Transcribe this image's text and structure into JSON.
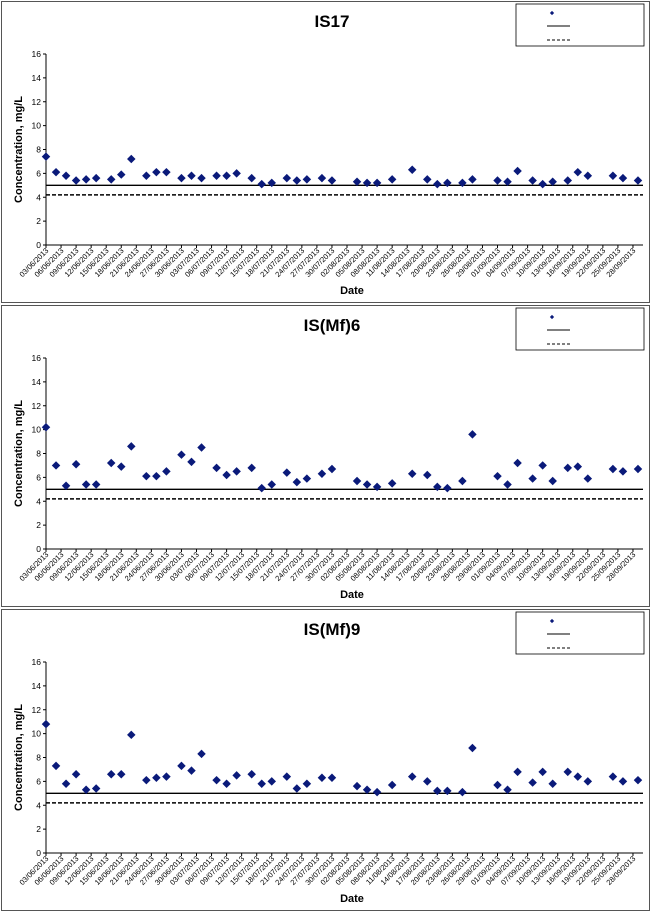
{
  "charts": [
    {
      "id": "IS17",
      "title": "IS17"
    },
    {
      "id": "ISMf6",
      "title": "IS(Mf)6"
    },
    {
      "id": "ISMf9",
      "title": "IS(Mf)9"
    }
  ],
  "chart_data": [
    {
      "type": "scatter",
      "title": "IS17",
      "xlabel": "Date",
      "ylabel": "Concentration, mg/L",
      "ylim": [
        0,
        16
      ],
      "yticks": [
        0,
        2,
        4,
        6,
        8,
        10,
        12,
        14,
        16
      ],
      "xlim": [
        "03/06/2013",
        "30/09/2013"
      ],
      "xticks": [
        "03/06/2013",
        "06/06/2013",
        "09/06/2013",
        "12/06/2013",
        "15/06/2013",
        "18/06/2013",
        "21/06/2013",
        "24/06/2013",
        "27/06/2013",
        "30/06/2013",
        "03/07/2013",
        "06/07/2013",
        "09/07/2013",
        "12/07/2013",
        "15/07/2013",
        "18/07/2013",
        "21/07/2013",
        "24/07/2013",
        "27/07/2013",
        "30/07/2013",
        "02/08/2013",
        "05/08/2013",
        "08/08/2013",
        "11/08/2013",
        "14/08/2013",
        "17/08/2013",
        "20/08/2013",
        "23/08/2013",
        "26/08/2013",
        "29/08/2013",
        "01/09/2013",
        "04/09/2013",
        "07/09/2013",
        "10/09/2013",
        "13/09/2013",
        "16/09/2013",
        "19/09/2013",
        "22/09/2013",
        "25/09/2013",
        "28/09/2013"
      ],
      "grid": false,
      "legend": {
        "position": "top-right",
        "entries": [
          "",
          "",
          ""
        ]
      },
      "reference_lines": [
        {
          "style": "solid",
          "value": 5.0
        },
        {
          "style": "dashed",
          "value": 4.2
        }
      ],
      "series": [
        {
          "marker": "diamond",
          "color": "#0a1a7a",
          "points": [
            [
              "03/06/2013",
              7.4
            ],
            [
              "05/06/2013",
              6.1
            ],
            [
              "07/06/2013",
              5.8
            ],
            [
              "09/06/2013",
              5.4
            ],
            [
              "11/06/2013",
              5.5
            ],
            [
              "13/06/2013",
              5.6
            ],
            [
              "16/06/2013",
              5.5
            ],
            [
              "18/06/2013",
              5.9
            ],
            [
              "20/06/2013",
              7.2
            ],
            [
              "23/06/2013",
              5.8
            ],
            [
              "25/06/2013",
              6.1
            ],
            [
              "27/06/2013",
              6.1
            ],
            [
              "30/06/2013",
              5.6
            ],
            [
              "02/07/2013",
              5.8
            ],
            [
              "04/07/2013",
              5.6
            ],
            [
              "07/07/2013",
              5.8
            ],
            [
              "09/07/2013",
              5.8
            ],
            [
              "11/07/2013",
              6.0
            ],
            [
              "14/07/2013",
              5.6
            ],
            [
              "16/07/2013",
              5.1
            ],
            [
              "18/07/2013",
              5.2
            ],
            [
              "21/07/2013",
              5.6
            ],
            [
              "23/07/2013",
              5.4
            ],
            [
              "25/07/2013",
              5.5
            ],
            [
              "28/07/2013",
              5.6
            ],
            [
              "30/07/2013",
              5.4
            ],
            [
              "04/08/2013",
              5.3
            ],
            [
              "06/08/2013",
              5.2
            ],
            [
              "08/08/2013",
              5.2
            ],
            [
              "11/08/2013",
              5.5
            ],
            [
              "15/08/2013",
              6.3
            ],
            [
              "18/08/2013",
              5.5
            ],
            [
              "20/08/2013",
              5.1
            ],
            [
              "22/08/2013",
              5.2
            ],
            [
              "25/08/2013",
              5.2
            ],
            [
              "27/08/2013",
              5.5
            ],
            [
              "01/09/2013",
              5.4
            ],
            [
              "03/09/2013",
              5.3
            ],
            [
              "05/09/2013",
              6.2
            ],
            [
              "08/09/2013",
              5.4
            ],
            [
              "10/09/2013",
              5.1
            ],
            [
              "12/09/2013",
              5.3
            ],
            [
              "15/09/2013",
              5.4
            ],
            [
              "17/09/2013",
              6.1
            ],
            [
              "19/09/2013",
              5.8
            ],
            [
              "24/09/2013",
              5.8
            ],
            [
              "26/09/2013",
              5.6
            ],
            [
              "29/09/2013",
              5.4
            ]
          ]
        }
      ]
    },
    {
      "type": "scatter",
      "title": "IS(Mf)6",
      "xlabel": "Date",
      "ylabel": "Concentration, mg/L",
      "ylim": [
        0,
        16
      ],
      "yticks": [
        0,
        2,
        4,
        6,
        8,
        10,
        12,
        14,
        16
      ],
      "xlim": [
        "03/06/2013",
        "30/09/2013"
      ],
      "xticks": [
        "03/06/2013",
        "06/06/2013",
        "09/06/2013",
        "12/06/2013",
        "15/06/2013",
        "18/06/2013",
        "21/06/2013",
        "24/06/2013",
        "27/06/2013",
        "30/06/2013",
        "03/07/2013",
        "06/07/2013",
        "09/07/2013",
        "12/07/2013",
        "15/07/2013",
        "18/07/2013",
        "21/07/2013",
        "24/07/2013",
        "27/07/2013",
        "30/07/2013",
        "02/08/2013",
        "05/08/2013",
        "08/08/2013",
        "11/08/2013",
        "14/08/2013",
        "17/08/2013",
        "20/08/2013",
        "23/08/2013",
        "26/08/2013",
        "29/08/2013",
        "01/09/2013",
        "04/09/2013",
        "07/09/2013",
        "10/09/2013",
        "13/09/2013",
        "16/09/2013",
        "19/09/2013",
        "22/09/2013",
        "25/09/2013",
        "28/09/2013"
      ],
      "grid": false,
      "legend": {
        "position": "top-right",
        "entries": [
          "",
          "",
          ""
        ]
      },
      "reference_lines": [
        {
          "style": "solid",
          "value": 5.0
        },
        {
          "style": "dashed",
          "value": 4.2
        }
      ],
      "series": [
        {
          "marker": "diamond",
          "color": "#0a1a7a",
          "points": [
            [
              "03/06/2013",
              10.2
            ],
            [
              "05/06/2013",
              7.0
            ],
            [
              "07/06/2013",
              5.3
            ],
            [
              "09/06/2013",
              7.1
            ],
            [
              "11/06/2013",
              5.4
            ],
            [
              "13/06/2013",
              5.4
            ],
            [
              "16/06/2013",
              7.2
            ],
            [
              "18/06/2013",
              6.9
            ],
            [
              "20/06/2013",
              8.6
            ],
            [
              "23/06/2013",
              6.1
            ],
            [
              "25/06/2013",
              6.1
            ],
            [
              "27/06/2013",
              6.5
            ],
            [
              "30/06/2013",
              7.9
            ],
            [
              "02/07/2013",
              7.3
            ],
            [
              "04/07/2013",
              8.5
            ],
            [
              "07/07/2013",
              6.8
            ],
            [
              "09/07/2013",
              6.2
            ],
            [
              "11/07/2013",
              6.5
            ],
            [
              "14/07/2013",
              6.8
            ],
            [
              "16/07/2013",
              5.1
            ],
            [
              "18/07/2013",
              5.4
            ],
            [
              "21/07/2013",
              6.4
            ],
            [
              "23/07/2013",
              5.6
            ],
            [
              "25/07/2013",
              5.9
            ],
            [
              "28/07/2013",
              6.3
            ],
            [
              "30/07/2013",
              6.7
            ],
            [
              "04/08/2013",
              5.7
            ],
            [
              "06/08/2013",
              5.4
            ],
            [
              "08/08/2013",
              5.2
            ],
            [
              "11/08/2013",
              5.5
            ],
            [
              "15/08/2013",
              6.3
            ],
            [
              "18/08/2013",
              6.2
            ],
            [
              "20/08/2013",
              5.2
            ],
            [
              "22/08/2013",
              5.1
            ],
            [
              "25/08/2013",
              5.7
            ],
            [
              "27/08/2013",
              9.6
            ],
            [
              "01/09/2013",
              6.1
            ],
            [
              "03/09/2013",
              5.4
            ],
            [
              "05/09/2013",
              7.2
            ],
            [
              "08/09/2013",
              5.9
            ],
            [
              "10/09/2013",
              7.0
            ],
            [
              "12/09/2013",
              5.7
            ],
            [
              "15/09/2013",
              6.8
            ],
            [
              "17/09/2013",
              6.9
            ],
            [
              "19/09/2013",
              5.9
            ],
            [
              "24/09/2013",
              6.7
            ],
            [
              "26/09/2013",
              6.5
            ],
            [
              "29/09/2013",
              6.7
            ]
          ]
        }
      ]
    },
    {
      "type": "scatter",
      "title": "IS(Mf)9",
      "xlabel": "Date",
      "ylabel": "Concentration, mg/L",
      "ylim": [
        0,
        16
      ],
      "yticks": [
        0,
        2,
        4,
        6,
        8,
        10,
        12,
        14,
        16
      ],
      "xlim": [
        "03/06/2013",
        "30/09/2013"
      ],
      "xticks": [
        "03/06/2013",
        "06/06/2013",
        "09/06/2013",
        "12/06/2013",
        "15/06/2013",
        "18/06/2013",
        "21/06/2013",
        "24/06/2013",
        "27/06/2013",
        "30/06/2013",
        "03/07/2013",
        "06/07/2013",
        "09/07/2013",
        "12/07/2013",
        "15/07/2013",
        "18/07/2013",
        "21/07/2013",
        "24/07/2013",
        "27/07/2013",
        "30/07/2013",
        "02/08/2013",
        "05/08/2013",
        "08/08/2013",
        "11/08/2013",
        "14/08/2013",
        "17/08/2013",
        "20/08/2013",
        "23/08/2013",
        "26/08/2013",
        "29/08/2013",
        "01/09/2013",
        "04/09/2013",
        "07/09/2013",
        "10/09/2013",
        "13/09/2013",
        "16/09/2013",
        "19/09/2013",
        "22/09/2013",
        "25/09/2013",
        "28/09/2013"
      ],
      "grid": false,
      "legend": {
        "position": "top-right",
        "entries": [
          "",
          "",
          ""
        ]
      },
      "reference_lines": [
        {
          "style": "solid",
          "value": 5.0
        },
        {
          "style": "dashed",
          "value": 4.2
        }
      ],
      "series": [
        {
          "marker": "diamond",
          "color": "#0a1a7a",
          "points": [
            [
              "03/06/2013",
              10.8
            ],
            [
              "05/06/2013",
              7.3
            ],
            [
              "07/06/2013",
              5.8
            ],
            [
              "09/06/2013",
              6.6
            ],
            [
              "11/06/2013",
              5.3
            ],
            [
              "13/06/2013",
              5.4
            ],
            [
              "16/06/2013",
              6.6
            ],
            [
              "18/06/2013",
              6.6
            ],
            [
              "20/06/2013",
              9.9
            ],
            [
              "23/06/2013",
              6.1
            ],
            [
              "25/06/2013",
              6.3
            ],
            [
              "27/06/2013",
              6.4
            ],
            [
              "30/06/2013",
              7.3
            ],
            [
              "02/07/2013",
              6.9
            ],
            [
              "04/07/2013",
              8.3
            ],
            [
              "07/07/2013",
              6.1
            ],
            [
              "09/07/2013",
              5.8
            ],
            [
              "11/07/2013",
              6.5
            ],
            [
              "14/07/2013",
              6.6
            ],
            [
              "16/07/2013",
              5.8
            ],
            [
              "18/07/2013",
              6.0
            ],
            [
              "21/07/2013",
              6.4
            ],
            [
              "23/07/2013",
              5.4
            ],
            [
              "25/07/2013",
              5.8
            ],
            [
              "28/07/2013",
              6.3
            ],
            [
              "30/07/2013",
              6.3
            ],
            [
              "04/08/2013",
              5.6
            ],
            [
              "06/08/2013",
              5.3
            ],
            [
              "08/08/2013",
              5.1
            ],
            [
              "11/08/2013",
              5.7
            ],
            [
              "15/08/2013",
              6.4
            ],
            [
              "18/08/2013",
              6.0
            ],
            [
              "20/08/2013",
              5.2
            ],
            [
              "22/08/2013",
              5.2
            ],
            [
              "25/08/2013",
              5.1
            ],
            [
              "27/08/2013",
              8.8
            ],
            [
              "01/09/2013",
              5.7
            ],
            [
              "03/09/2013",
              5.3
            ],
            [
              "05/09/2013",
              6.8
            ],
            [
              "08/09/2013",
              5.9
            ],
            [
              "10/09/2013",
              6.8
            ],
            [
              "12/09/2013",
              5.8
            ],
            [
              "15/09/2013",
              6.8
            ],
            [
              "17/09/2013",
              6.4
            ],
            [
              "19/09/2013",
              6.0
            ],
            [
              "24/09/2013",
              6.4
            ],
            [
              "26/09/2013",
              6.0
            ],
            [
              "29/09/2013",
              6.1
            ]
          ]
        }
      ]
    }
  ]
}
